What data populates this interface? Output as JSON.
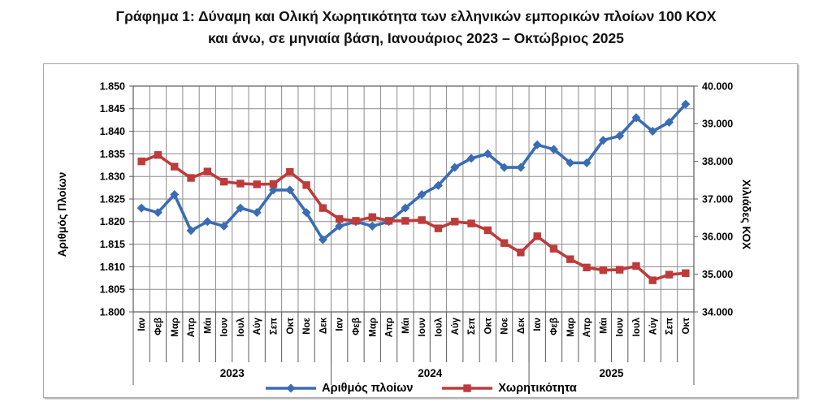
{
  "title": {
    "line1": "Γράφημα 1: Δύναμη και Ολική Χωρητικότητα των ελληνικών εμπορικών πλοίων 100 ΚΟΧ",
    "line2": "και άνω, σε μηνιαία βάση, Ιανουάριος 2023 – Οκτώβριος 2025"
  },
  "colors": {
    "ships_blue": "#3a6cb4",
    "capacity_red": "#be3b3b",
    "gridline": "#8c8c8c",
    "axis_line": "#595959",
    "frame_border": "#a9a9a9"
  },
  "chart_data": {
    "type": "line",
    "grid": true,
    "legend_position": "bottom",
    "categories": [
      "Ιαν",
      "Φεβ",
      "Μαρ",
      "Απρ",
      "Μάι",
      "Ιουν",
      "Ιουλ",
      "Αύγ",
      "Σεπ",
      "Οκτ",
      "Νοε",
      "Δεκ",
      "Ιαν",
      "Φεβ",
      "Μαρ",
      "Απρ",
      "Μάι",
      "Ιουν",
      "Ιουλ",
      "Αύγ",
      "Σεπ",
      "Οκτ",
      "Νοε",
      "Δεκ",
      "Ιαν",
      "Φεβ",
      "Μαρ",
      "Απρ",
      "Μάι",
      "Ιουν",
      "Ιουλ",
      "Αύγ",
      "Σεπ",
      "Οκτ"
    ],
    "year_groups": [
      {
        "label": "2023",
        "months": 12
      },
      {
        "label": "2024",
        "months": 12
      },
      {
        "label": "2025",
        "months": 10
      }
    ],
    "left_axis": {
      "title": "Αριθμός Πλοίων",
      "min": 1800,
      "max": 1850,
      "step": 5,
      "tick_labels": [
        "1.850",
        "1.845",
        "1.840",
        "1.835",
        "1.830",
        "1.825",
        "1.820",
        "1.815",
        "1.810",
        "1.805",
        "1.800"
      ]
    },
    "right_axis": {
      "title": "Χιλιάδες ΚΟΧ",
      "min": 34000,
      "max": 40000,
      "step": 1000,
      "tick_labels": [
        "40.000",
        "39.000",
        "38.000",
        "37.000",
        "36.000",
        "35.000",
        "34.000"
      ]
    },
    "series": [
      {
        "name": "Αριθμός πλοίων",
        "axis": "left",
        "color": "#3a6cb4",
        "marker": "diamond",
        "values": [
          1823,
          1822,
          1826,
          1818,
          1820,
          1819,
          1823,
          1822,
          1827,
          1827,
          1822,
          1816,
          1819,
          1820,
          1819,
          1820,
          1823,
          1826,
          1828,
          1832,
          1834,
          1835,
          1832,
          1832,
          1837,
          1836,
          1833,
          1833,
          1838,
          1839,
          1843,
          1840,
          1842,
          1846
        ]
      },
      {
        "name": "Χωρητικότητα",
        "axis": "right",
        "color": "#be3b3b",
        "marker": "square",
        "values": [
          38000,
          38170,
          37860,
          37560,
          37730,
          37460,
          37410,
          37390,
          37400,
          37720,
          37370,
          36760,
          36470,
          36420,
          36520,
          36420,
          36420,
          36440,
          36220,
          36400,
          36350,
          36170,
          35830,
          35580,
          36010,
          35680,
          35400,
          35180,
          35110,
          35120,
          35220,
          34840,
          34990,
          35030
        ]
      }
    ]
  }
}
